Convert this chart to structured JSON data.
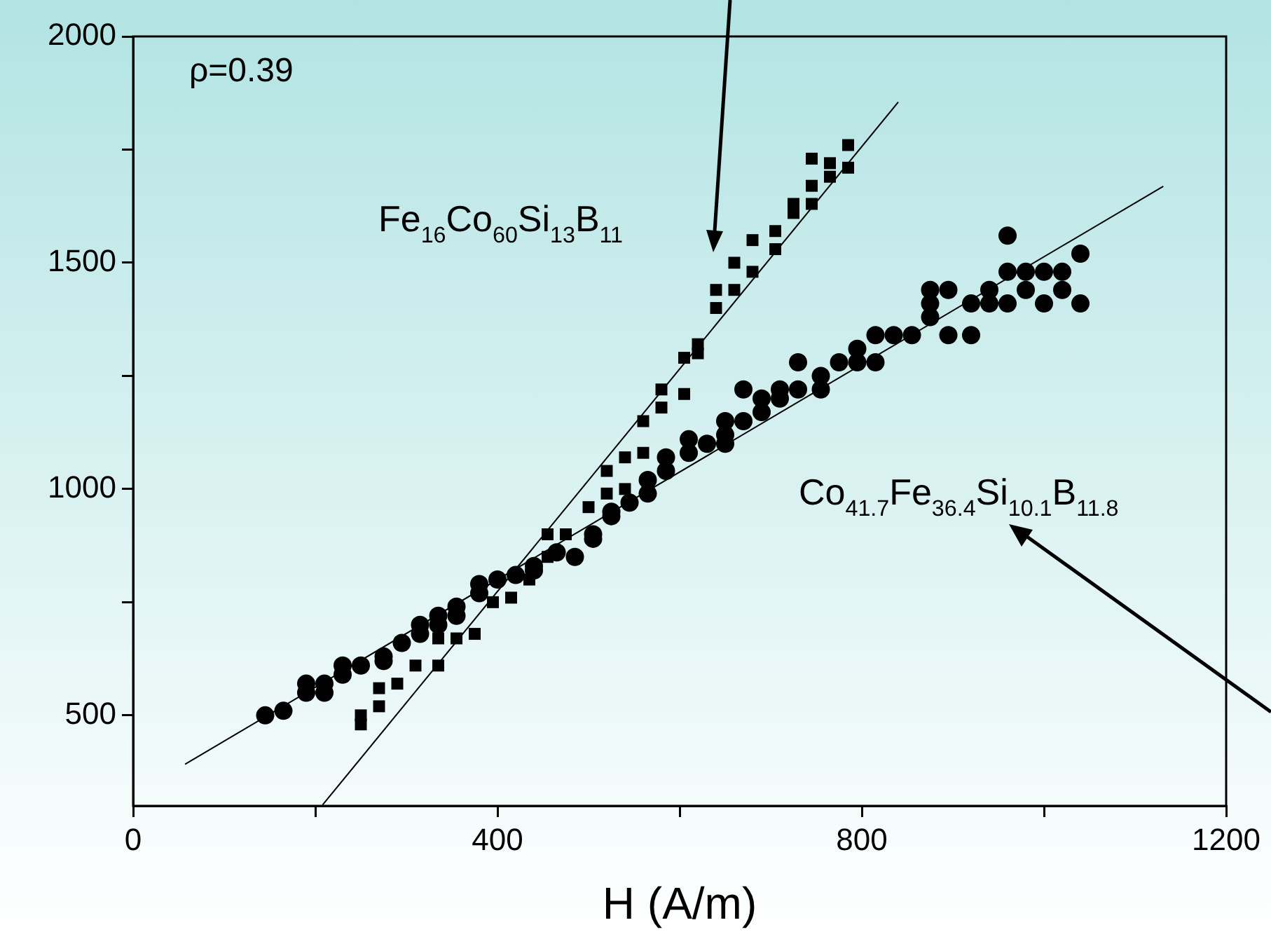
{
  "chart_data": {
    "type": "scatter",
    "xlabel": "H (A/m)",
    "annotations": [
      "ρ=0.39",
      "Fe$_{16}$Co$_{60}$Si$_{13}$B$_{11}$",
      "Co$_{41.7}$Fe$_{36.4}$Si$_{10.1}$B$_{11.8}$"
    ],
    "xlim": [
      0,
      1200
    ],
    "ylim": [
      300,
      2000
    ],
    "xticks": [
      0,
      {
        "value": 200,
        "label": null
      },
      400,
      {
        "value": 600,
        "label": null
      },
      800,
      {
        "value": 1000,
        "label": null
      },
      1200
    ],
    "yticks": [
      500,
      {
        "value": 750,
        "label": null
      },
      1000,
      {
        "value": 1250,
        "label": null
      },
      1500,
      {
        "value": 1750,
        "label": null
      },
      2000
    ],
    "legend": false,
    "series": [
      {
        "color": "#000000",
        "marker": "square",
        "x": [
          250,
          250,
          270,
          270,
          290,
          310,
          335,
          335,
          355,
          375,
          395,
          415,
          435,
          455,
          455,
          475,
          500,
          520,
          520,
          540,
          540,
          560,
          560,
          580,
          580,
          605,
          605,
          620,
          620,
          640,
          640,
          660,
          660,
          680,
          680,
          705,
          705,
          725,
          725,
          745,
          745,
          745,
          765,
          765,
          785,
          785
        ],
        "values": [
          500,
          480,
          560,
          520,
          570,
          610,
          610,
          670,
          670,
          680,
          750,
          760,
          800,
          900,
          850,
          900,
          960,
          1040,
          990,
          1070,
          1000,
          1150,
          1080,
          1220,
          1180,
          1290,
          1210,
          1320,
          1300,
          1440,
          1400,
          1500,
          1440,
          1550,
          1480,
          1570,
          1530,
          1630,
          1610,
          1670,
          1630,
          1730,
          1720,
          1690,
          1760,
          1710
        ]
      },
      {
        "color": "#000000",
        "marker": "circle",
        "x": [
          145,
          165,
          190,
          190,
          210,
          210,
          230,
          230,
          250,
          275,
          275,
          295,
          315,
          315,
          335,
          335,
          355,
          355,
          380,
          380,
          400,
          420,
          440,
          440,
          465,
          485,
          505,
          505,
          525,
          525,
          545,
          565,
          565,
          585,
          585,
          610,
          610,
          630,
          650,
          650,
          650,
          670,
          670,
          690,
          690,
          710,
          710,
          730,
          730,
          755,
          755,
          775,
          795,
          795,
          815,
          815,
          835,
          855,
          875,
          875,
          875,
          895,
          895,
          920,
          920,
          940,
          940,
          960,
          960,
          960,
          980,
          980,
          1000,
          1000,
          1020,
          1020,
          1040,
          1040
        ],
        "values": [
          500,
          510,
          570,
          550,
          570,
          550,
          610,
          590,
          610,
          630,
          620,
          660,
          700,
          680,
          720,
          700,
          740,
          720,
          790,
          770,
          800,
          810,
          830,
          820,
          860,
          850,
          900,
          890,
          950,
          940,
          970,
          1020,
          990,
          1070,
          1040,
          1110,
          1080,
          1100,
          1150,
          1120,
          1100,
          1220,
          1150,
          1200,
          1170,
          1220,
          1200,
          1280,
          1220,
          1250,
          1220,
          1280,
          1310,
          1280,
          1340,
          1280,
          1340,
          1340,
          1440,
          1410,
          1380,
          1440,
          1340,
          1410,
          1340,
          1440,
          1410,
          1560,
          1480,
          1410,
          1480,
          1440,
          1480,
          1410,
          1480,
          1440,
          1520,
          1410
        ]
      },
      {
        "type": "line",
        "color": "#000000",
        "x": [
          208,
          840
        ],
        "values": [
          302,
          1855
        ]
      },
      {
        "type": "line",
        "color": "#000000",
        "x": [
          57,
          1131
        ],
        "values": [
          392,
          1669
        ]
      }
    ]
  }
}
